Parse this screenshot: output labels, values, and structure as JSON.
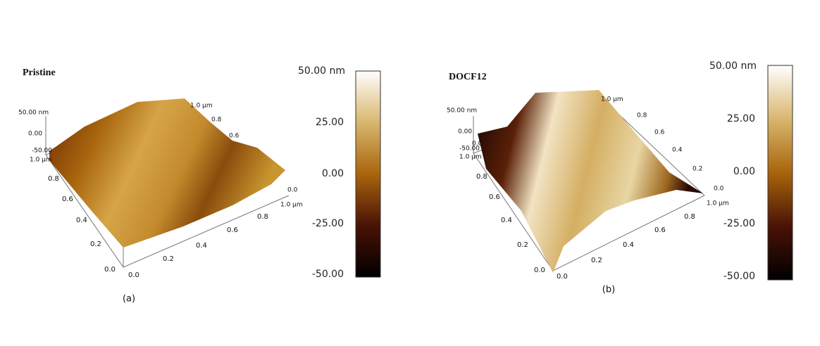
{
  "panels": [
    {
      "title": "Pristine",
      "caption": "(a)",
      "z_axis": [
        "50.00 nm",
        "0.00",
        "-50.00"
      ],
      "y_axis": [
        "1.0 µm",
        "0.8",
        "0.6",
        "0.4",
        "0.2",
        "0.0"
      ],
      "x_axis": [
        "0.0",
        "0.2",
        "0.4",
        "0.6",
        "0.8",
        "1.0 µm"
      ],
      "back_axis": [
        "1.0 µm",
        "0.8",
        "0.6"
      ],
      "side_axis": [
        "0.0"
      ],
      "colorbar": [
        "50.00 nm",
        "25.00",
        "0.00",
        "-25.00",
        "-50.00"
      ]
    },
    {
      "title": "DOCF12",
      "caption": "(b)",
      "z_axis": [
        "50.00 nm",
        "0.00",
        "-50.00",
        "0.0"
      ],
      "y_axis": [
        "1.0 µm",
        "0.8",
        "0.6",
        "0.4",
        "0.2",
        "0.0"
      ],
      "x_axis": [
        "0.0",
        "0.2",
        "0.4",
        "0.6",
        "0.8",
        "1.0 µm"
      ],
      "back_axis": [
        "1.0 µm",
        "0.8",
        "0.6",
        "0.4",
        "0.2"
      ],
      "side_axis": [
        "0.0"
      ],
      "colorbar": [
        "50.00 nm",
        "25.00",
        "0.00",
        "-25.00",
        "-50.00"
      ]
    }
  ]
}
